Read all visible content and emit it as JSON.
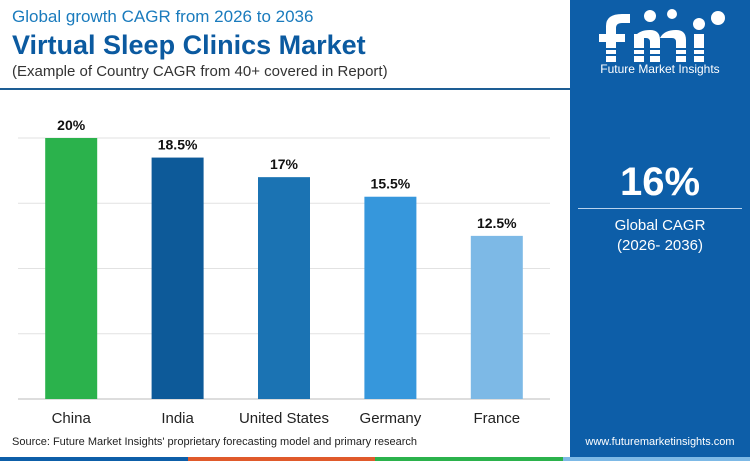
{
  "header": {
    "subtitle": "Global growth CAGR from 2026 to 2036",
    "title": "Virtual Sleep Clinics Market",
    "note": "(Example of Country CAGR from 40+ covered in Report)"
  },
  "chart_data": {
    "type": "bar",
    "categories": [
      "China",
      "India",
      "United States",
      "Germany",
      "France"
    ],
    "values": [
      20,
      18.5,
      17,
      15.5,
      12.5
    ],
    "value_labels": [
      "20%",
      "18.5%",
      "17%",
      "15.5%",
      "12.5%"
    ],
    "colors": [
      "#2bb24c",
      "#0d5a99",
      "#1b73b3",
      "#3697dc",
      "#7db9e6"
    ],
    "ylim": [
      0,
      20
    ],
    "grid": true,
    "xlabel": "",
    "ylabel": ""
  },
  "source": "Source: Future Market Insights' proprietary forecasting model and primary research",
  "side_panel": {
    "logo_text": "Future Market Insights",
    "global_cagr_value": "16%",
    "global_cagr_label": "Global CAGR",
    "global_cagr_period": "(2026- 2036)",
    "website": "www.futuremarketinsights.com"
  },
  "theme": {
    "panel_color": "#0d5ea8",
    "title_color": "#0b5aa0",
    "strip_colors": [
      "#0d5ea8",
      "#e05a2b",
      "#2bb24c",
      "#7db9e6"
    ]
  }
}
